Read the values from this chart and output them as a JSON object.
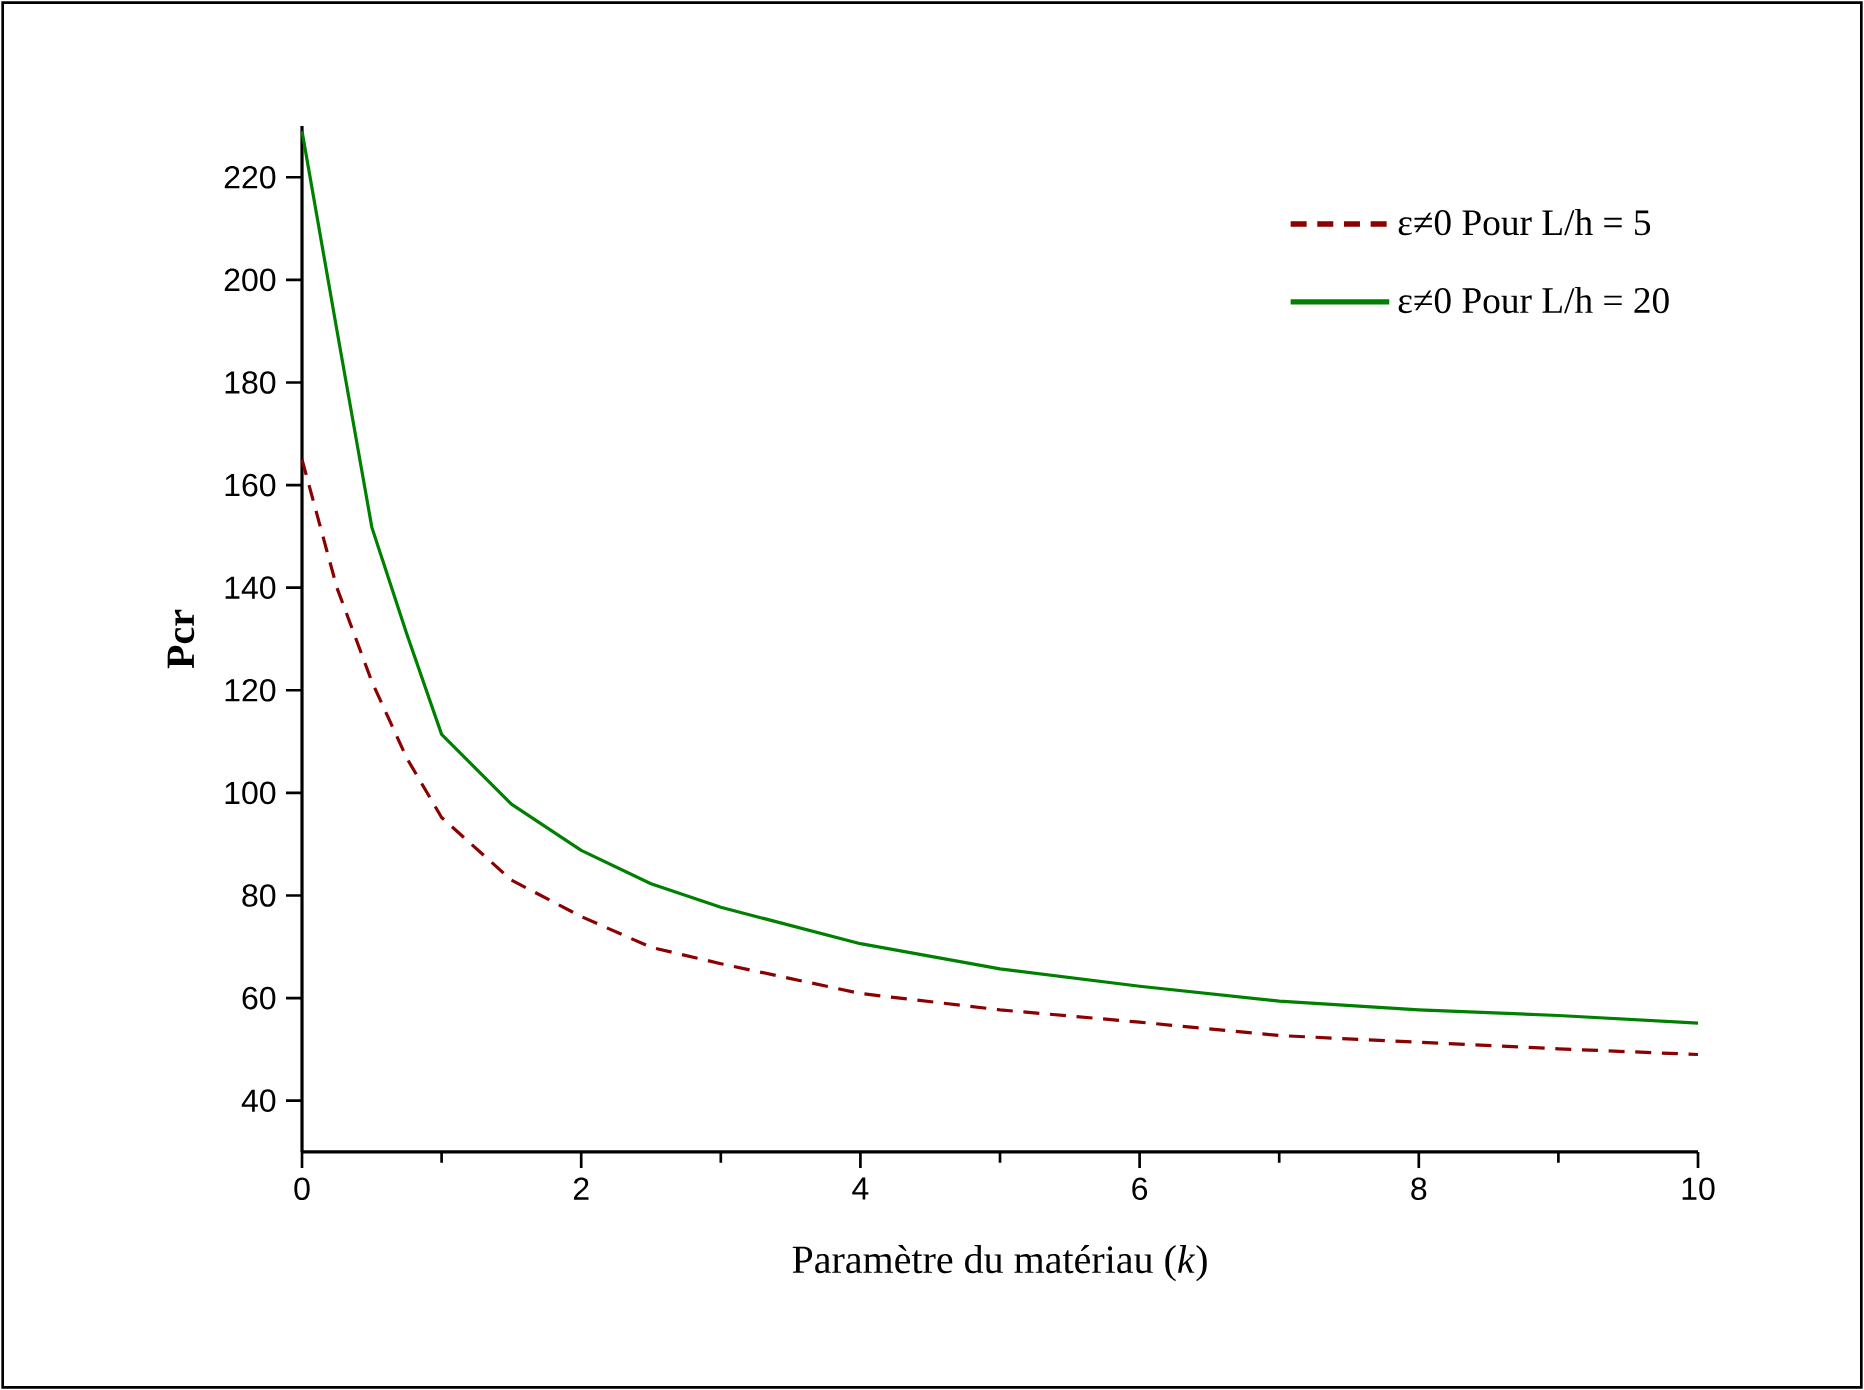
{
  "chart_data": {
    "type": "line",
    "xlabel": "Paramètre du matériau (*k*)",
    "ylabel": "**Pcr**",
    "x": [
      0,
      0.25,
      0.5,
      0.75,
      1,
      1.5,
      2,
      2.5,
      3,
      4,
      5,
      6,
      7,
      8,
      9,
      10
    ],
    "series": [
      {
        "name": "ε≠0 Pour L/h = 5",
        "color": "#8b0000",
        "line_style": "dashed",
        "values": [
          165,
          140,
          121.7,
          106.8,
          95.2,
          83,
          75.9,
          69.9,
          66.7,
          60.9,
          57.7,
          55.3,
          52.7,
          51.4,
          50.1,
          49
        ]
      },
      {
        "name": "ε≠0 Pour L/h = 20",
        "color": "#008000",
        "line_style": "solid",
        "values": [
          229,
          190.2,
          151.8,
          131,
          111.4,
          97.8,
          88.8,
          82.3,
          77.7,
          70.6,
          65.7,
          62.3,
          59.4,
          57.7,
          56.6,
          55.1
        ]
      }
    ],
    "xlim": [
      0,
      10
    ],
    "ylim": [
      30,
      230
    ],
    "xticks": [
      0,
      2,
      4,
      6,
      8,
      10
    ],
    "yticks": [
      40,
      60,
      80,
      100,
      120,
      140,
      160,
      180,
      200,
      220
    ],
    "legend": "top right"
  }
}
